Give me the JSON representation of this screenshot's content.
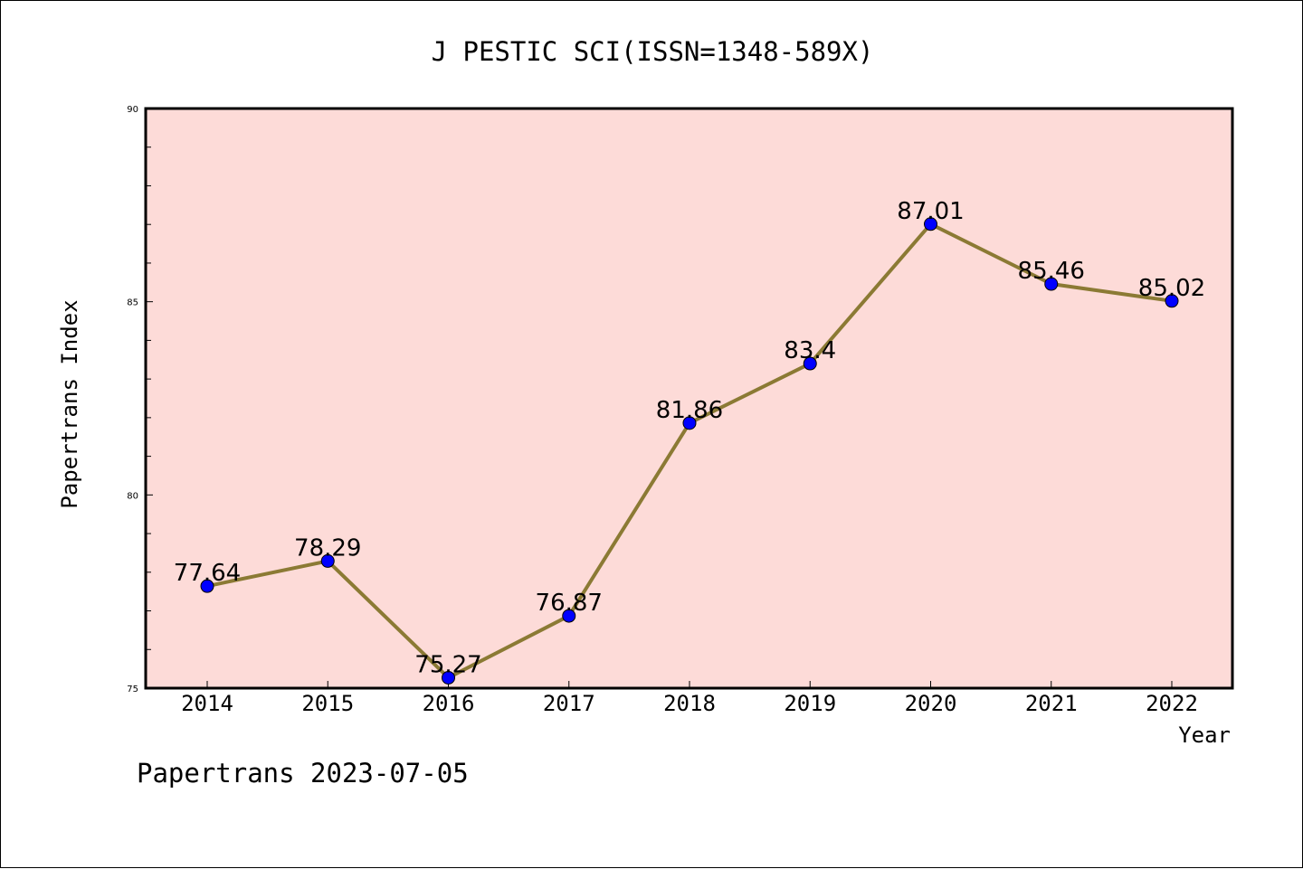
{
  "chart_data": {
    "type": "line",
    "title": "J PESTIC SCI(ISSN=1348-589X)",
    "xlabel": "Year",
    "ylabel": "Papertrans Index",
    "categories": [
      "2014",
      "2015",
      "2016",
      "2017",
      "2018",
      "2019",
      "2020",
      "2021",
      "2022"
    ],
    "series": [
      {
        "values": [
          77.64,
          78.29,
          75.27,
          76.87,
          81.86,
          83.4,
          87.01,
          85.46,
          85.02
        ],
        "data_labels": [
          "77.64",
          "78.29",
          "75.27",
          "76.87",
          "81.86",
          "83.4",
          "87.01",
          "85.46",
          "85.02"
        ]
      }
    ],
    "ylim": [
      75,
      90
    ],
    "yticks": [
      "75",
      "80",
      "85",
      "90"
    ],
    "grid": false,
    "colors": {
      "plot_background": "#fddbd8",
      "line": "#8b7a34",
      "marker": "#0000ff",
      "axis": "#000000"
    }
  },
  "footer": {
    "text": "Papertrans 2023-07-05"
  }
}
